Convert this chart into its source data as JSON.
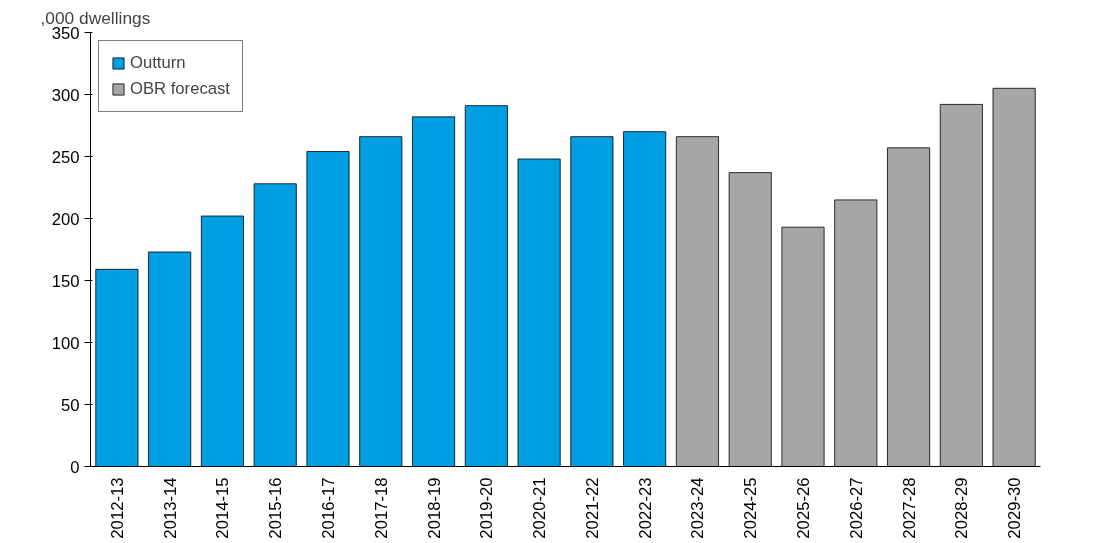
{
  "chart_data": {
    "type": "bar",
    "ylabel": ",000 dwellings",
    "categories": [
      "2012-13",
      "2013-14",
      "2014-15",
      "2015-16",
      "2016-17",
      "2017-18",
      "2018-19",
      "2019-20",
      "2020-21",
      "2021-22",
      "2022-23",
      "2023-24",
      "2024-25",
      "2025-26",
      "2026-27",
      "2027-28",
      "2028-29",
      "2029-30"
    ],
    "series": [
      {
        "name": "Outturn",
        "color": "#009fe3",
        "values": [
          159,
          173,
          202,
          228,
          254,
          266,
          282,
          291,
          248,
          266,
          270,
          null,
          null,
          null,
          null,
          null,
          null,
          null
        ]
      },
      {
        "name": "OBR forecast",
        "color": "#a6a6a6",
        "values": [
          null,
          null,
          null,
          null,
          null,
          null,
          null,
          null,
          null,
          null,
          null,
          266,
          237,
          193,
          215,
          257,
          292,
          305
        ]
      }
    ],
    "ylim": [
      0,
      350
    ],
    "yticks": [
      0,
      50,
      100,
      150,
      200,
      250,
      300,
      350
    ],
    "grid": false,
    "legend": "top left"
  }
}
